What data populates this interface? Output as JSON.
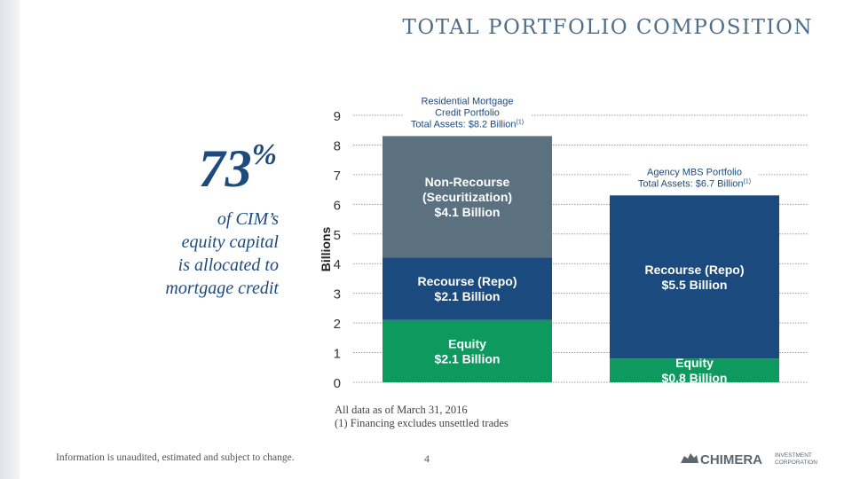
{
  "slide": {
    "title": "TOTAL PORTFOLIO COMPOSITION",
    "highlight_value": "73",
    "highlight_unit": "%",
    "highlight_lines": [
      "of CIM’s",
      "equity capital",
      "is allocated to",
      "mortgage credit"
    ],
    "note_lines": [
      "All data as of March 31, 2016",
      "(1)    Financing excludes unsettled trades"
    ],
    "footer_note": "Information is unaudited, estimated and subject to change.",
    "page_number": "4",
    "logo_name": "CHIMERA",
    "logo_sub": [
      "INVESTMENT",
      "CORPORATION"
    ]
  },
  "colors": {
    "title": "#4f6e8c",
    "accent_text": "#1e4b7d",
    "equity": "#0e9a5f",
    "recourse": "#1b4b7e",
    "non_recourse": "#5b7180",
    "grid": "#9a9a9a"
  },
  "chart_data": {
    "type": "bar",
    "stacked": true,
    "ylabel": "Billions",
    "ylim": [
      0,
      9
    ],
    "yticks": [
      "0",
      "1",
      "2",
      "3",
      "4",
      "5",
      "6",
      "7",
      "8",
      "9"
    ],
    "grid": true,
    "categories": [
      {
        "header": [
          "Residential Mortgage",
          "Credit Portfolio",
          "Total Assets: $8.2 Billion"
        ],
        "header_sup": "(1)"
      },
      {
        "header": [
          "Agency MBS Portfolio",
          "Total Assets: $6.7 Billion"
        ],
        "header_sup": "(1)"
      }
    ],
    "series": [
      {
        "name": "Equity",
        "color_key": "equity",
        "values": [
          2.1,
          0.8
        ],
        "labels": [
          [
            "Equity",
            "$2.1 Billion"
          ],
          [
            "Equity",
            "$0.8 Billion"
          ]
        ]
      },
      {
        "name": "Recourse (Repo)",
        "color_key": "recourse",
        "values": [
          2.1,
          5.5
        ],
        "labels": [
          [
            "Recourse (Repo)",
            "$2.1 Billion"
          ],
          [
            "Recourse (Repo)",
            "$5.5 Billion"
          ]
        ]
      },
      {
        "name": "Non-Recourse (Securitization)",
        "color_key": "non_recourse",
        "values": [
          4.1,
          0
        ],
        "labels": [
          [
            "Non-Recourse",
            "(Securitization)",
            "$4.1 Billion"
          ],
          []
        ]
      }
    ]
  }
}
